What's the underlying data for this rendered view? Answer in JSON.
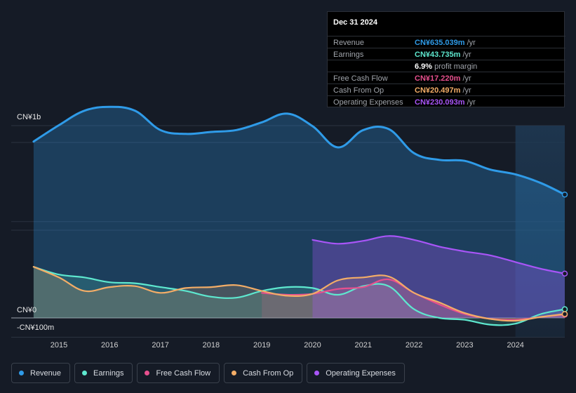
{
  "tooltip": {
    "date": "Dec 31 2024",
    "rows": [
      {
        "name": "Revenue",
        "value": "CN¥635.039m",
        "unit": " /yr",
        "color": "#2f9be8"
      },
      {
        "name": "Earnings",
        "value": "CN¥43.735m",
        "unit": " /yr",
        "color": "#5ee8cf"
      },
      {
        "name": "",
        "value": "6.9%",
        "unit": " profit margin",
        "color": "#ffffff"
      },
      {
        "name": "Free Cash Flow",
        "value": "CN¥17.220m",
        "unit": " /yr",
        "color": "#e7508e"
      },
      {
        "name": "Cash From Op",
        "value": "CN¥20.497m",
        "unit": " /yr",
        "color": "#f3ad67"
      },
      {
        "name": "Operating Expenses",
        "value": "CN¥230.093m",
        "unit": " /yr",
        "color": "#a855f7"
      }
    ]
  },
  "legend": [
    {
      "label": "Revenue",
      "color": "#2f9be8"
    },
    {
      "label": "Earnings",
      "color": "#5ee8cf"
    },
    {
      "label": "Free Cash Flow",
      "color": "#e7508e"
    },
    {
      "label": "Cash From Op",
      "color": "#f3ad67"
    },
    {
      "label": "Operating Expenses",
      "color": "#a855f7"
    }
  ],
  "chart_data": {
    "type": "area",
    "title": "",
    "y_unit": "CN¥m",
    "y_axis_labels": [
      "CN¥1b",
      "CN¥0",
      "-CN¥100m"
    ],
    "ylim": [
      -100,
      1100
    ],
    "xlim": [
      2014.6,
      2025.0
    ],
    "x_ticks": [
      "2015",
      "2016",
      "2017",
      "2018",
      "2019",
      "2020",
      "2021",
      "2022",
      "2023",
      "2024"
    ],
    "forecast_shade_from": 2024.0,
    "series": [
      {
        "name": "Revenue",
        "color": "#2f9be8",
        "x": [
          2014.5,
          2015.0,
          2015.5,
          2016.0,
          2016.5,
          2017.0,
          2017.5,
          2018.0,
          2018.5,
          2019.0,
          2019.5,
          2020.0,
          2020.5,
          2021.0,
          2021.5,
          2022.0,
          2022.5,
          2023.0,
          2023.5,
          2024.0,
          2024.5,
          2025.0
        ],
        "values": [
          915,
          1000,
          1075,
          1095,
          1075,
          975,
          955,
          965,
          975,
          1015,
          1060,
          995,
          885,
          975,
          980,
          855,
          820,
          815,
          770,
          745,
          700,
          640
        ]
      },
      {
        "name": "Earnings",
        "color": "#5ee8cf",
        "x": [
          2014.5,
          2015.0,
          2015.5,
          2016.0,
          2016.5,
          2017.0,
          2017.5,
          2018.0,
          2018.5,
          2019.0,
          2019.5,
          2020.0,
          2020.5,
          2021.0,
          2021.5,
          2022.0,
          2022.5,
          2023.0,
          2023.5,
          2024.0,
          2024.5,
          2025.0
        ],
        "values": [
          265,
          225,
          210,
          185,
          180,
          160,
          140,
          110,
          105,
          140,
          160,
          155,
          120,
          165,
          165,
          45,
          0,
          -10,
          -35,
          -30,
          20,
          45
        ]
      },
      {
        "name": "Free Cash Flow",
        "color": "#e7508e",
        "x": [
          2019.0,
          2019.5,
          2020.0,
          2020.5,
          2021.0,
          2021.5,
          2022.0,
          2022.5,
          2023.0,
          2023.5,
          2024.0,
          2024.5,
          2025.0
        ],
        "values": [
          130,
          120,
          125,
          150,
          160,
          200,
          130,
          70,
          20,
          -5,
          -10,
          5,
          17
        ]
      },
      {
        "name": "Cash From Op",
        "color": "#f3ad67",
        "x": [
          2014.5,
          2015.0,
          2015.5,
          2016.0,
          2016.5,
          2017.0,
          2017.5,
          2018.0,
          2018.5,
          2019.0,
          2019.5,
          2020.0,
          2020.5,
          2021.0,
          2021.5,
          2022.0,
          2022.5,
          2023.0,
          2023.5,
          2024.0,
          2024.5,
          2025.0
        ],
        "values": [
          265,
          210,
          140,
          160,
          165,
          130,
          155,
          160,
          170,
          140,
          115,
          125,
          195,
          210,
          215,
          130,
          80,
          25,
          -5,
          -15,
          5,
          20
        ]
      },
      {
        "name": "Operating Expenses",
        "color": "#a855f7",
        "x": [
          2020.0,
          2020.5,
          2021.0,
          2021.5,
          2022.0,
          2022.5,
          2023.0,
          2023.5,
          2024.0,
          2024.5,
          2025.0
        ],
        "values": [
          405,
          385,
          400,
          425,
          405,
          370,
          345,
          325,
          290,
          255,
          230
        ]
      }
    ]
  }
}
